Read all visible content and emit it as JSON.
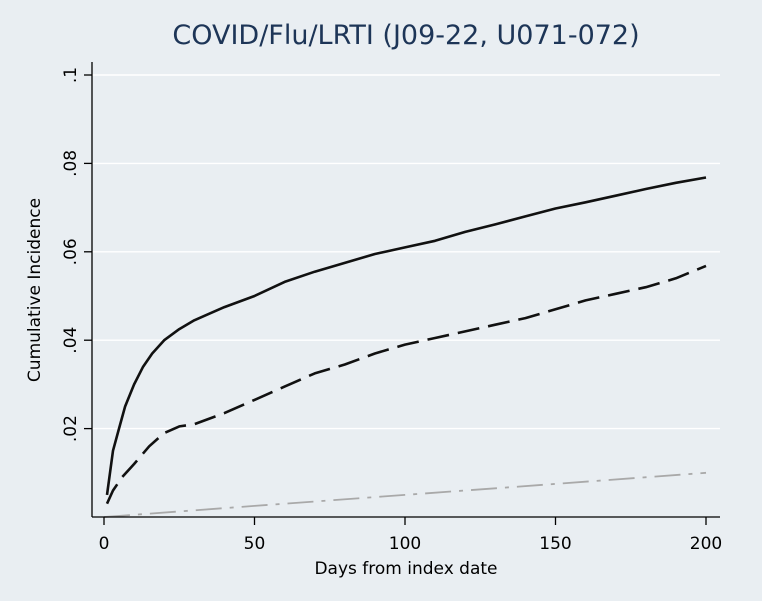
{
  "chart_data": {
    "type": "line",
    "title": "COVID/Flu/LRTI (J09-22, U071-072)",
    "xlabel": "Days from index date",
    "ylabel": "Cumulative Incidence",
    "xlim": [
      0,
      200
    ],
    "ylim": [
      0,
      0.1
    ],
    "xticks": [
      0,
      50,
      100,
      150,
      200
    ],
    "xtick_labels": [
      "0",
      "50",
      "100",
      "150",
      "200"
    ],
    "yticks": [
      0.02,
      0.04,
      0.06,
      0.08,
      0.1
    ],
    "ytick_labels": [
      ".02",
      ".04",
      ".06",
      ".08",
      ".1"
    ],
    "grid": true,
    "series": [
      {
        "style": "solid",
        "color": "#111111",
        "x": [
          1,
          2,
          3,
          5,
          7,
          10,
          13,
          16,
          20,
          25,
          30,
          35,
          40,
          50,
          60,
          70,
          80,
          90,
          100,
          110,
          120,
          130,
          140,
          150,
          160,
          170,
          180,
          190,
          200
        ],
        "y": [
          0.005,
          0.01,
          0.015,
          0.02,
          0.025,
          0.03,
          0.034,
          0.037,
          0.04,
          0.0425,
          0.0445,
          0.046,
          0.0475,
          0.05,
          0.0532,
          0.0555,
          0.0575,
          0.0595,
          0.061,
          0.0625,
          0.0645,
          0.0662,
          0.068,
          0.0698,
          0.0712,
          0.0727,
          0.0742,
          0.0756,
          0.0768
        ]
      },
      {
        "style": "dashed",
        "color": "#111111",
        "x": [
          1,
          3,
          6,
          10,
          15,
          20,
          25,
          30,
          40,
          50,
          60,
          70,
          80,
          90,
          100,
          110,
          120,
          130,
          140,
          150,
          160,
          170,
          180,
          190,
          200
        ],
        "y": [
          0.003,
          0.006,
          0.009,
          0.012,
          0.016,
          0.019,
          0.0205,
          0.021,
          0.0235,
          0.0265,
          0.0295,
          0.0325,
          0.0345,
          0.037,
          0.039,
          0.0405,
          0.042,
          0.0435,
          0.045,
          0.047,
          0.049,
          0.0505,
          0.052,
          0.054,
          0.0568
        ]
      },
      {
        "style": "dashdot",
        "color": "#a9a9a9",
        "x": [
          0,
          50,
          100,
          150,
          200
        ],
        "y": [
          0.0,
          0.0025,
          0.005,
          0.0075,
          0.01
        ]
      }
    ]
  }
}
